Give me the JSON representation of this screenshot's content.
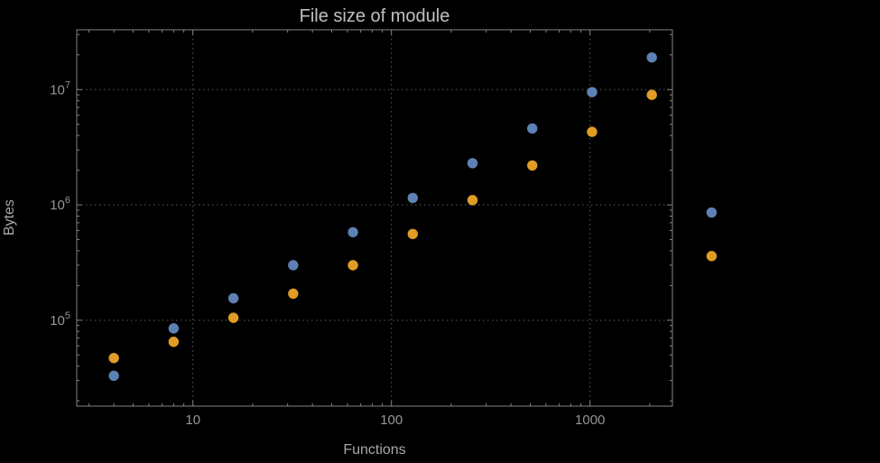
{
  "page": {
    "background": "#000000"
  },
  "chart_data": {
    "type": "scatter",
    "title": "File size of module",
    "xlabel": "Functions",
    "ylabel": "Bytes",
    "xscale": "log",
    "yscale": "log",
    "grid": "dotted",
    "legend": "none",
    "xlim": [
      2.6,
      2600
    ],
    "ylim": [
      18000,
      33000000
    ],
    "x_ticks": [
      10,
      100,
      1000
    ],
    "x_tick_labels": [
      "10",
      "100",
      "1000"
    ],
    "y_ticks": [
      100000,
      1000000,
      10000000
    ],
    "y_tick_exponents": [
      5,
      6,
      7
    ],
    "clip_points": false,
    "x": [
      4,
      8,
      16,
      32,
      64,
      128,
      256,
      512,
      1024,
      2048,
      4096
    ],
    "series": [
      {
        "name": "series-1-blue",
        "color": "#5E81B5",
        "marker": "circle",
        "values": [
          33000,
          85000,
          155000,
          300000,
          580000,
          1150000,
          2300000,
          4600000,
          9500000,
          19000000,
          860000
        ]
      },
      {
        "name": "series-2-orange",
        "color": "#E09C24",
        "marker": "circle",
        "values": [
          47000,
          65000,
          105000,
          170000,
          300000,
          560000,
          1100000,
          2200000,
          4300000,
          9000000,
          360000
        ]
      }
    ],
    "colors": {
      "background": "#000000",
      "frame": "#848484",
      "grid": "#5e5e5e",
      "tick_text": "#969696",
      "label_text": "#a8a8a8",
      "title_text": "#c0c0c0",
      "series_blue": "#5E81B5",
      "series_orange": "#E09C24"
    }
  }
}
